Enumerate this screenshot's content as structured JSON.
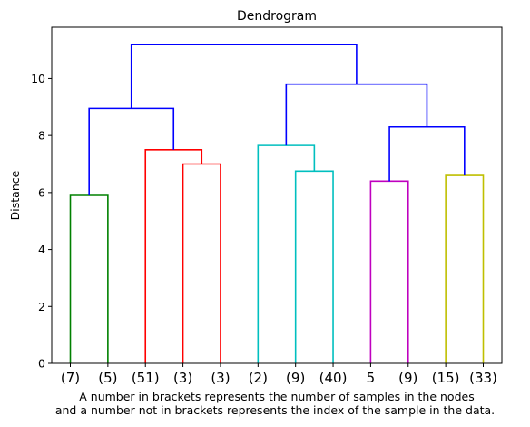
{
  "chart_data": {
    "type": "dendrogram",
    "title": "Dendrogram",
    "xlabel_lines": [
      "A number in brackets represents the number of samples in the nodes",
      "and a number not in brackets represents the index of the sample in the data."
    ],
    "ylabel": "Distance",
    "ylim": [
      0,
      11.8
    ],
    "yticks": [
      0,
      2,
      4,
      6,
      8,
      10
    ],
    "ytick_labels": [
      "0",
      "2",
      "4",
      "6",
      "8",
      "10"
    ],
    "leaf_labels": [
      "(7)",
      "(5)",
      "(51)",
      "(3)",
      "(3)",
      "(2)",
      "(9)",
      "(40)",
      "5",
      "(9)",
      "(15)",
      "(33)"
    ],
    "colors": {
      "green": "#008000",
      "red": "#ff0000",
      "cyan": "#00bfbf",
      "magenta": "#bf00bf",
      "yellow": "#bfbf00",
      "blue": "#0000ff"
    },
    "links": [
      {
        "left": 0,
        "right": 1,
        "height": 5.9,
        "left_height": 0,
        "right_height": 0,
        "color": "green"
      },
      {
        "left": 3,
        "right": 4,
        "height": 7.0,
        "left_height": 0,
        "right_height": 0,
        "color": "red"
      },
      {
        "left": 2,
        "right": 3.5,
        "height": 7.5,
        "left_height": 0,
        "right_height": 7.0,
        "color": "red"
      },
      {
        "left": 0.5,
        "right": 2.75,
        "height": 8.95,
        "left_height": 5.9,
        "right_height": 7.5,
        "color": "blue"
      },
      {
        "left": 6,
        "right": 7,
        "height": 6.75,
        "left_height": 0,
        "right_height": 0,
        "color": "cyan"
      },
      {
        "left": 5,
        "right": 6.5,
        "height": 7.65,
        "left_height": 0,
        "right_height": 6.75,
        "color": "cyan"
      },
      {
        "left": 8,
        "right": 9,
        "height": 6.4,
        "left_height": 0,
        "right_height": 0,
        "color": "magenta"
      },
      {
        "left": 10,
        "right": 11,
        "height": 6.6,
        "left_height": 0,
        "right_height": 0,
        "color": "yellow"
      },
      {
        "left": 8.5,
        "right": 10.5,
        "height": 8.3,
        "left_height": 6.4,
        "right_height": 6.6,
        "color": "blue"
      },
      {
        "left": 5.75,
        "right": 9.5,
        "height": 9.8,
        "left_height": 7.65,
        "right_height": 8.3,
        "color": "blue"
      },
      {
        "left": 1.625,
        "right": 7.625,
        "height": 11.2,
        "left_height": 8.95,
        "right_height": 9.8,
        "color": "blue"
      }
    ],
    "grid": false,
    "legend": "none"
  }
}
